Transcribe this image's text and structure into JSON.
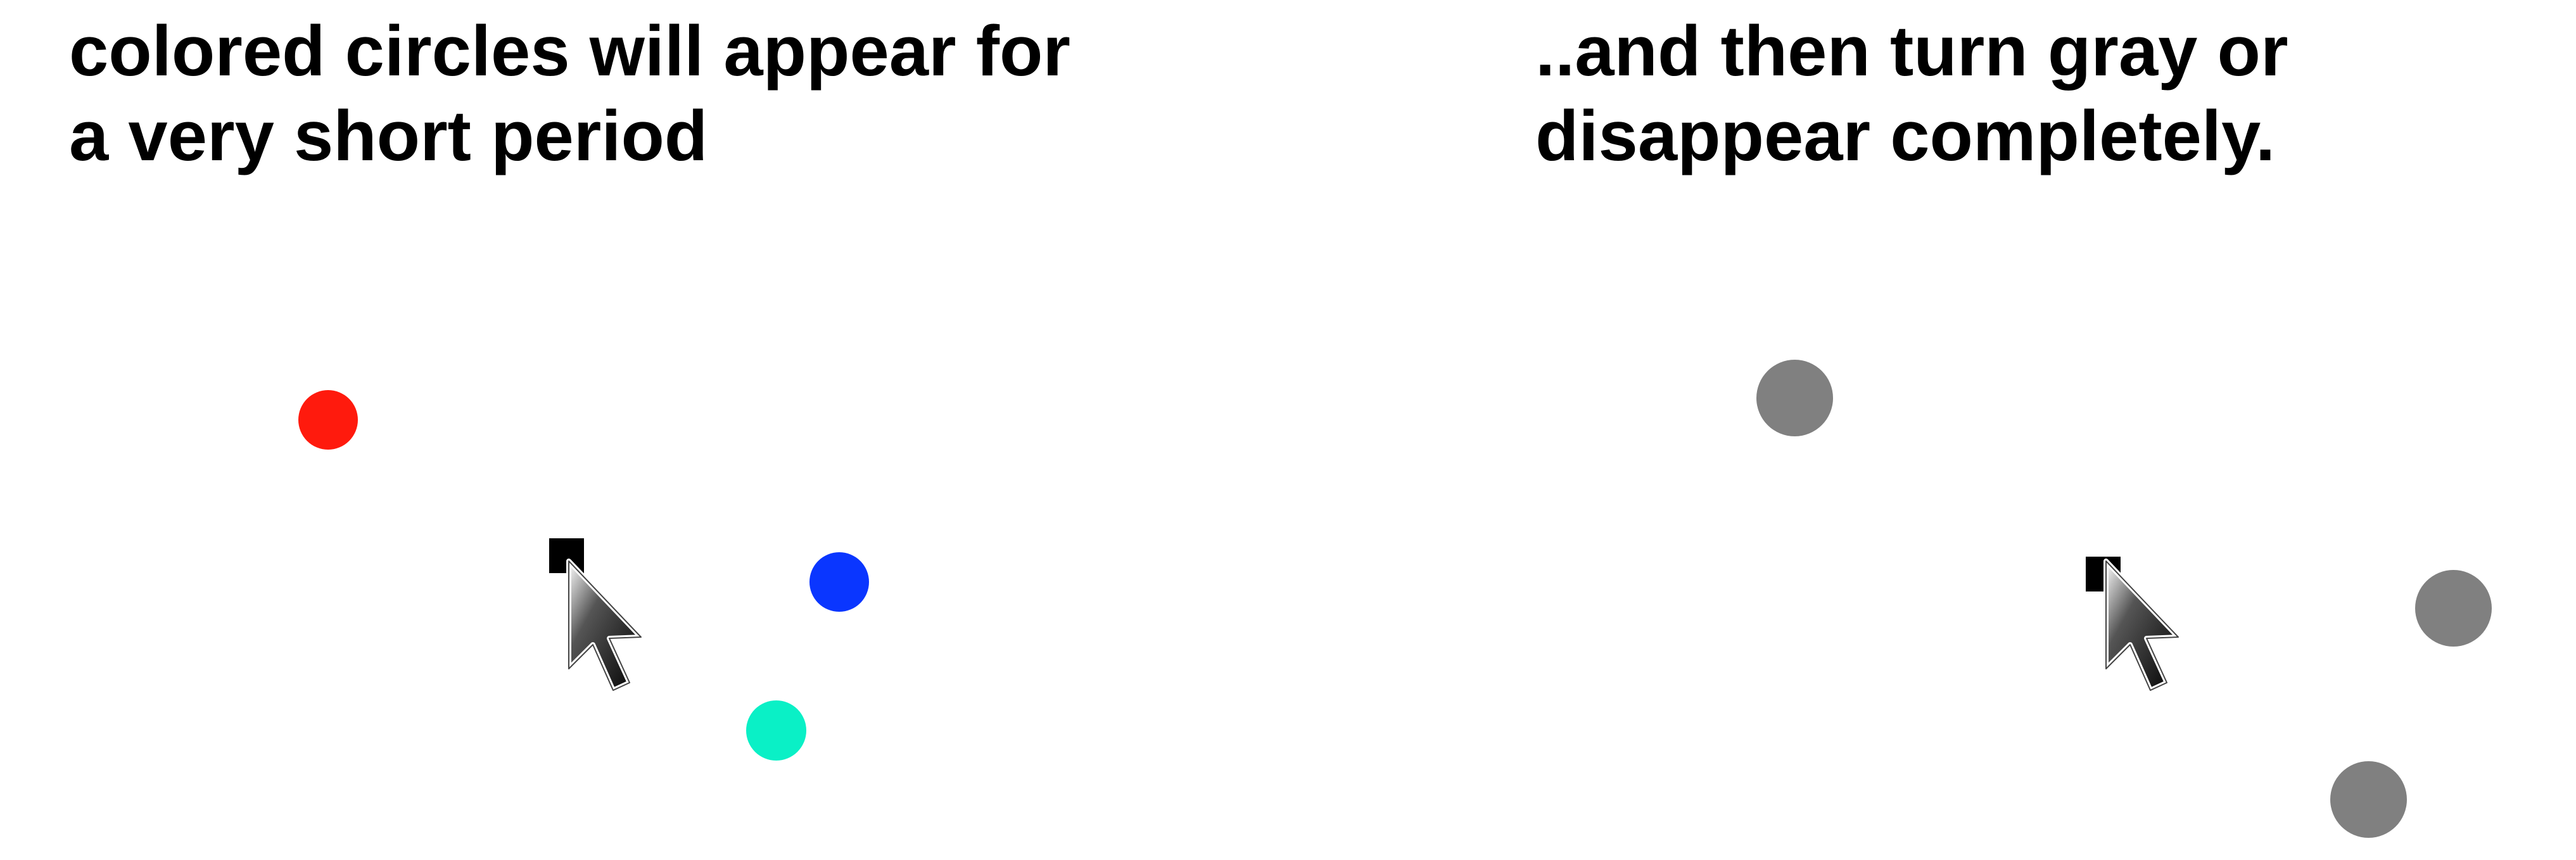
{
  "left_panel": {
    "caption_line1": "colored circles will appear for",
    "caption_line2": "a very short period",
    "circles": [
      {
        "name": "red-circle",
        "color": "#ff1a0d"
      },
      {
        "name": "blue-circle",
        "color": "#0a36ff"
      },
      {
        "name": "teal-circle",
        "color": "#0af0c6"
      }
    ]
  },
  "right_panel": {
    "caption_line1": "..and then turn gray or",
    "caption_line2": "disappear completely.",
    "circles": [
      {
        "name": "gray-circle",
        "color": "#808080"
      },
      {
        "name": "gray-circle",
        "color": "#808080"
      },
      {
        "name": "gray-circle",
        "color": "#808080"
      }
    ]
  },
  "colors": {
    "background": "#ffffff",
    "text": "#000000",
    "fixation": "#000000",
    "gray": "#808080"
  },
  "icons": {
    "pointer": "mouse-pointer-icon",
    "fixation": "fixation-square"
  }
}
